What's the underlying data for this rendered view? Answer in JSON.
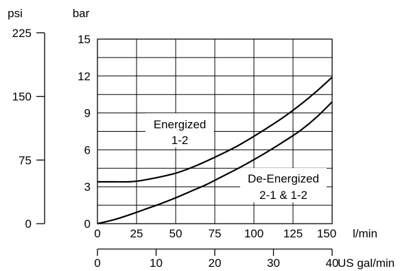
{
  "chart_data": {
    "type": "line",
    "units": {
      "psi": "psi",
      "bar": "bar",
      "lpm": "l/min",
      "gpm": "US gal/min"
    },
    "psi_ticks": [
      0,
      75,
      150,
      225
    ],
    "bar_ticks": [
      0,
      3,
      6,
      9,
      12,
      15
    ],
    "lpm_ticks": [
      25,
      50,
      75,
      100,
      125,
      150
    ],
    "gpm_ticks": [
      0,
      10,
      20,
      30,
      40
    ],
    "bar_origin_label": "0",
    "xlim": [
      0,
      150
    ],
    "ylim": [
      0,
      15
    ],
    "grid_y": [
      1.5,
      3,
      4.5,
      6,
      7.5,
      9,
      10.5,
      12,
      13.5
    ],
    "grid_x": [
      25,
      50,
      75,
      100,
      125
    ],
    "series": [
      {
        "label_lines": [
          "Energized",
          "1-2"
        ],
        "x": [
          0,
          10,
          20,
          25,
          30,
          40,
          50,
          60,
          70,
          80,
          90,
          100,
          110,
          120,
          130,
          140,
          150
        ],
        "y": [
          3.4,
          3.4,
          3.4,
          3.45,
          3.55,
          3.8,
          4.1,
          4.55,
          5.1,
          5.7,
          6.35,
          7.1,
          7.9,
          8.75,
          9.7,
          10.75,
          11.9
        ]
      },
      {
        "label_lines": [
          "De-Energized",
          "2-1 & 1-2"
        ],
        "x": [
          0,
          10,
          20,
          30,
          40,
          50,
          60,
          70,
          80,
          90,
          100,
          110,
          120,
          130,
          140,
          150
        ],
        "y": [
          0,
          0.3,
          0.7,
          1.15,
          1.6,
          2.1,
          2.65,
          3.2,
          3.85,
          4.5,
          5.2,
          5.95,
          6.75,
          7.6,
          8.65,
          9.9
        ]
      }
    ]
  }
}
